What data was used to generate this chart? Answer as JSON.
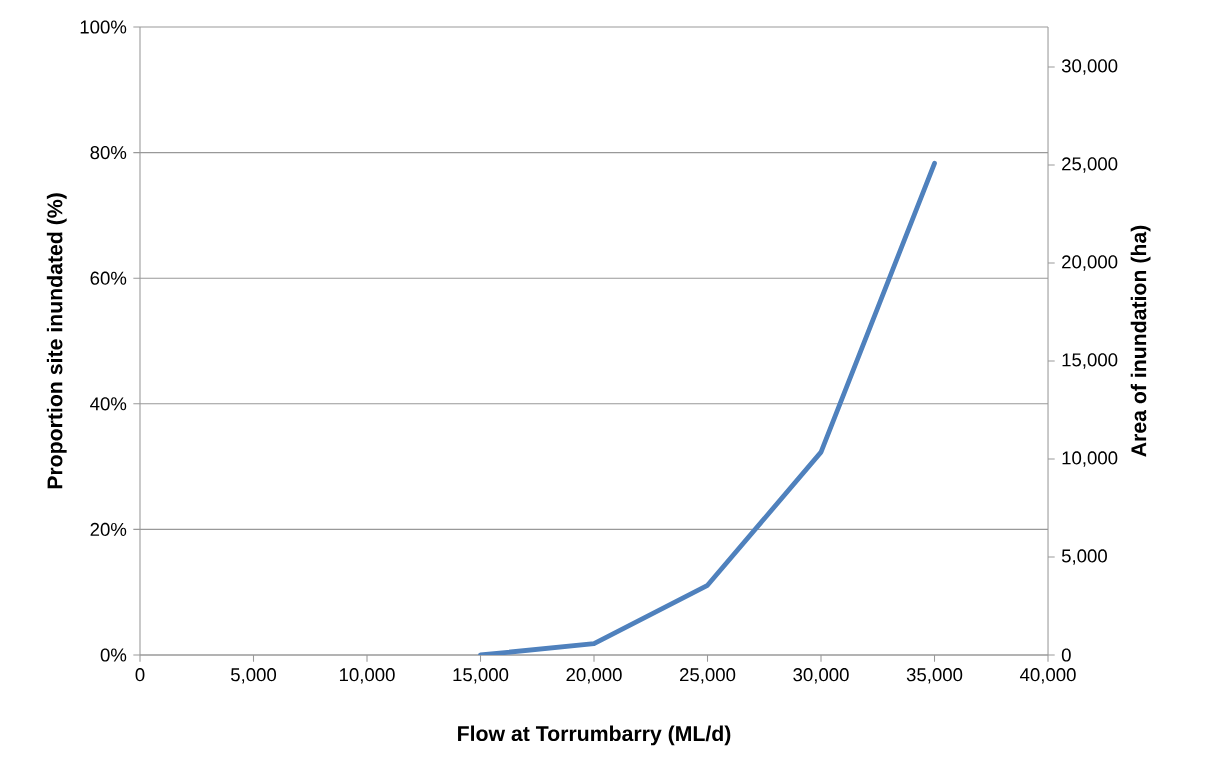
{
  "chart_data": {
    "type": "line",
    "xlabel": "Flow at Torrumbarry (ML/d)",
    "ylabel": "Proportion site inundated (%)",
    "y2label": "Area of inundation (ha)",
    "x": [
      15000,
      20000,
      25000,
      30000,
      35000
    ],
    "series": [
      {
        "color": "#4f81bd",
        "values": [
          0,
          1.8,
          11.1,
          32.3,
          78.3
        ]
      }
    ],
    "xlim": [
      0,
      40000
    ],
    "xticks": [
      {
        "value": 0,
        "label": "0"
      },
      {
        "value": 5000,
        "label": "5,000"
      },
      {
        "value": 10000,
        "label": "10,000"
      },
      {
        "value": 15000,
        "label": "15,000"
      },
      {
        "value": 20000,
        "label": "20,000"
      },
      {
        "value": 25000,
        "label": "25,000"
      },
      {
        "value": 30000,
        "label": "30,000"
      },
      {
        "value": 35000,
        "label": "35,000"
      },
      {
        "value": 40000,
        "label": "40,000"
      }
    ],
    "ylim": [
      0,
      100
    ],
    "yticks": [
      {
        "value": 0,
        "label": "0%"
      },
      {
        "value": 20,
        "label": "20%"
      },
      {
        "value": 40,
        "label": "40%"
      },
      {
        "value": 60,
        "label": "60%"
      },
      {
        "value": 80,
        "label": "80%"
      },
      {
        "value": 100,
        "label": "100%"
      }
    ],
    "y2lim": [
      0,
      32040
    ],
    "y2ticks": [
      {
        "value": 0,
        "label": "0"
      },
      {
        "value": 5000,
        "label": "5,000"
      },
      {
        "value": 10000,
        "label": "10,000"
      },
      {
        "value": 15000,
        "label": "15,000"
      },
      {
        "value": 20000,
        "label": "20,000"
      },
      {
        "value": 25000,
        "label": "25,000"
      },
      {
        "value": 30000,
        "label": "30,000"
      }
    ],
    "grid": "y",
    "marker": "none",
    "line_style": "solid"
  }
}
